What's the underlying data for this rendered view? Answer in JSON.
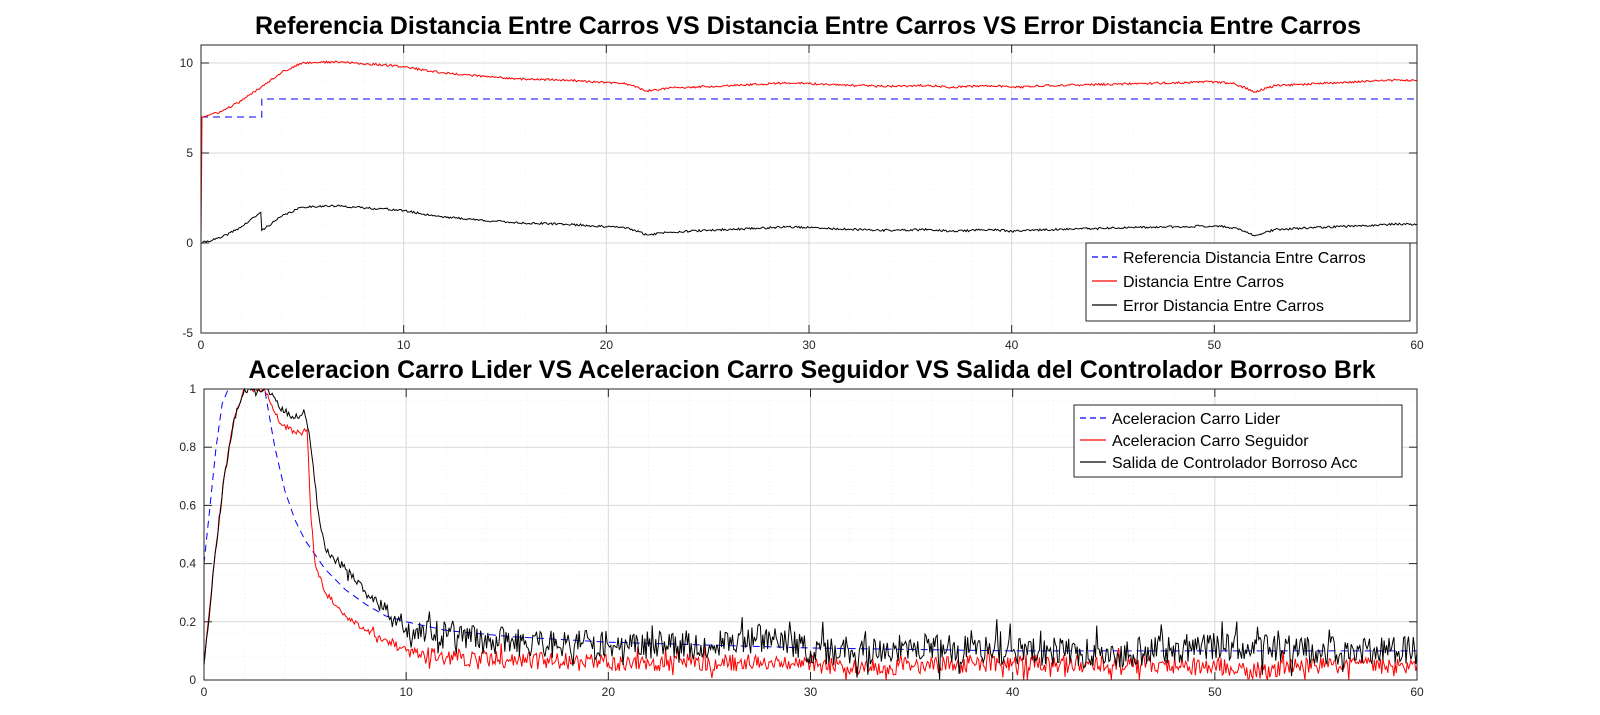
{
  "chart_data": [
    {
      "type": "line",
      "title": "Referencia Distancia Entre Carros VS Distancia Entre Carros VS Error Distancia Entre Carros",
      "xlabel": "",
      "ylabel": "",
      "xlim": [
        0,
        60
      ],
      "ylim": [
        -5,
        11
      ],
      "xticks": [
        0,
        10,
        20,
        30,
        40,
        50,
        60
      ],
      "yticks": [
        -5,
        0,
        5,
        10
      ],
      "grid": true,
      "minor_grid": true,
      "legend_position": "bottom-right",
      "series": [
        {
          "name": "Referencia Distancia Entre Carros",
          "color": "#0000ff",
          "dash": true,
          "noise": 0,
          "x": [
            0,
            3,
            3,
            60
          ],
          "y": [
            7,
            7,
            8,
            8
          ]
        },
        {
          "name": "Distancia Entre Carros",
          "color": "#ff0000",
          "dash": false,
          "noise": 0.06,
          "x": [
            0,
            0.05,
            1,
            2,
            3,
            4,
            5,
            6,
            7,
            8,
            9,
            10,
            11,
            12,
            14,
            16,
            18,
            20,
            21,
            22,
            23,
            25,
            27,
            29,
            30,
            32,
            34,
            36,
            37,
            38,
            39,
            40,
            42,
            44,
            46,
            48,
            50,
            51,
            52,
            53,
            55,
            57,
            59,
            60
          ],
          "y": [
            0,
            7,
            7.3,
            7.9,
            8.7,
            9.5,
            10,
            10.05,
            10.05,
            9.95,
            9.9,
            9.8,
            9.6,
            9.45,
            9.25,
            9.1,
            9.05,
            8.9,
            8.85,
            8.45,
            8.6,
            8.7,
            8.8,
            8.9,
            8.85,
            8.75,
            8.7,
            8.75,
            8.65,
            8.7,
            8.75,
            8.65,
            8.75,
            8.8,
            8.85,
            8.9,
            8.95,
            8.85,
            8.4,
            8.75,
            8.85,
            8.95,
            9.05,
            9.05
          ]
        },
        {
          "name": "Error Distancia Entre Carros",
          "color": "#000000",
          "dash": false,
          "noise": 0.06,
          "x": [
            0,
            1,
            2,
            2.95,
            3,
            4,
            5,
            6,
            7,
            8,
            9,
            10,
            11,
            12,
            14,
            16,
            18,
            20,
            21,
            22,
            23,
            25,
            27,
            29,
            30,
            32,
            34,
            36,
            37,
            38,
            39,
            40,
            42,
            44,
            46,
            48,
            50,
            51,
            52,
            53,
            55,
            57,
            59,
            60
          ],
          "y": [
            0,
            0.3,
            0.9,
            1.7,
            0.7,
            1.5,
            2.0,
            2.05,
            2.05,
            1.95,
            1.9,
            1.8,
            1.6,
            1.45,
            1.25,
            1.1,
            1.05,
            0.9,
            0.85,
            0.45,
            0.6,
            0.7,
            0.8,
            0.9,
            0.85,
            0.75,
            0.7,
            0.75,
            0.65,
            0.7,
            0.75,
            0.65,
            0.75,
            0.8,
            0.85,
            0.9,
            0.95,
            0.85,
            0.4,
            0.75,
            0.85,
            0.95,
            1.05,
            1.05
          ]
        }
      ]
    },
    {
      "type": "line",
      "title": "Aceleracion Carro Lider VS Aceleracion Carro Seguidor VS Salida del Controlador Borroso Brk",
      "xlabel": "",
      "ylabel": "",
      "xlim": [
        0,
        60
      ],
      "ylim": [
        0,
        1
      ],
      "xticks": [
        0,
        10,
        20,
        30,
        40,
        50,
        60
      ],
      "yticks": [
        0,
        0.2,
        0.4,
        0.6,
        0.8,
        1
      ],
      "grid": true,
      "minor_grid": true,
      "legend_position": "top-right",
      "series": [
        {
          "name": "Aceleracion Carro Lider",
          "color": "#0000ff",
          "dash": true,
          "noise": 0,
          "x": [
            0,
            0.3,
            0.6,
            0.9,
            1.2,
            3,
            3.5,
            4,
            4.5,
            5,
            6,
            7,
            8,
            9,
            10,
            12,
            15,
            20,
            25,
            30,
            40,
            50,
            60
          ],
          "y": [
            0.4,
            0.6,
            0.8,
            0.95,
            1,
            1,
            0.8,
            0.65,
            0.55,
            0.48,
            0.38,
            0.31,
            0.26,
            0.22,
            0.2,
            0.17,
            0.15,
            0.13,
            0.12,
            0.11,
            0.1,
            0.1,
            0.1
          ]
        },
        {
          "name": "Aceleracion Carro Seguidor",
          "color": "#ff0000",
          "dash": false,
          "noise": 0.03,
          "x": [
            0,
            0.5,
            1,
            1.5,
            2,
            2.5,
            3,
            3.3,
            3.8,
            4.5,
            5.1,
            5.3,
            5.5,
            6,
            7,
            8,
            9,
            10,
            12,
            15,
            20,
            25,
            30,
            32,
            35,
            40,
            45,
            50,
            52,
            55,
            60
          ],
          "y": [
            0.05,
            0.4,
            0.7,
            0.9,
            1,
            1,
            1,
            0.95,
            0.88,
            0.85,
            0.86,
            0.55,
            0.4,
            0.3,
            0.22,
            0.17,
            0.14,
            0.1,
            0.08,
            0.07,
            0.06,
            0.06,
            0.06,
            0.04,
            0.05,
            0.06,
            0.05,
            0.05,
            0.03,
            0.05,
            0.05
          ]
        },
        {
          "name": "Salida de Controlador Borroso Acc",
          "color": "#000000",
          "dash": false,
          "noise": 0.05,
          "x": [
            0,
            0.5,
            1,
            1.5,
            2,
            2.5,
            3,
            3.5,
            4,
            4.5,
            5,
            5.2,
            5.6,
            6,
            7,
            8,
            9,
            10,
            12,
            15,
            20,
            25,
            28,
            30,
            32,
            35,
            40,
            45,
            50,
            55,
            60
          ],
          "y": [
            0.05,
            0.4,
            0.7,
            0.9,
            1,
            1,
            1,
            0.97,
            0.92,
            0.9,
            0.91,
            0.85,
            0.6,
            0.45,
            0.38,
            0.3,
            0.24,
            0.18,
            0.15,
            0.13,
            0.12,
            0.12,
            0.15,
            0.1,
            0.1,
            0.11,
            0.1,
            0.09,
            0.12,
            0.1,
            0.1
          ]
        }
      ]
    }
  ]
}
